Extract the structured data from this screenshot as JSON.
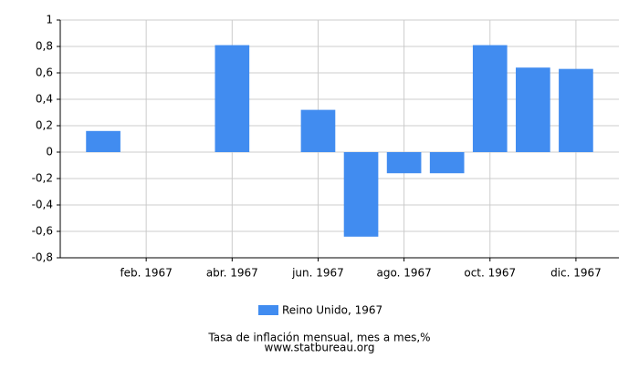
{
  "chart_data": {
    "type": "bar",
    "categories": [
      null,
      "feb. 1967",
      null,
      "abr. 1967",
      null,
      "jun. 1967",
      null,
      "ago. 1967",
      null,
      "oct. 1967",
      null,
      "dic. 1967"
    ],
    "series": [
      {
        "name": "Reino Unido, 1967",
        "color": "#418cf0",
        "values": [
          0.16,
          0,
          0,
          0.81,
          0,
          0.32,
          -0.64,
          -0.16,
          -0.16,
          0.81,
          0.64,
          0.63
        ]
      }
    ],
    "ylim": [
      -0.8,
      1
    ],
    "yticks": [
      {
        "value": -0.8,
        "label": "-0,8"
      },
      {
        "value": -0.6,
        "label": "-0,6"
      },
      {
        "value": -0.4,
        "label": "-0,4"
      },
      {
        "value": -0.2,
        "label": "-0,2"
      },
      0,
      {
        "value": 0.2,
        "label": "0,2"
      },
      {
        "value": 0.4,
        "label": "0,4"
      },
      {
        "value": 0.6,
        "label": "0,6"
      },
      {
        "value": 0.8,
        "label": "0,8"
      },
      1
    ],
    "grid": true,
    "subtitle": "Tasa de inflación mensual, mes a mes,%",
    "source": "www.statbureau.org"
  }
}
